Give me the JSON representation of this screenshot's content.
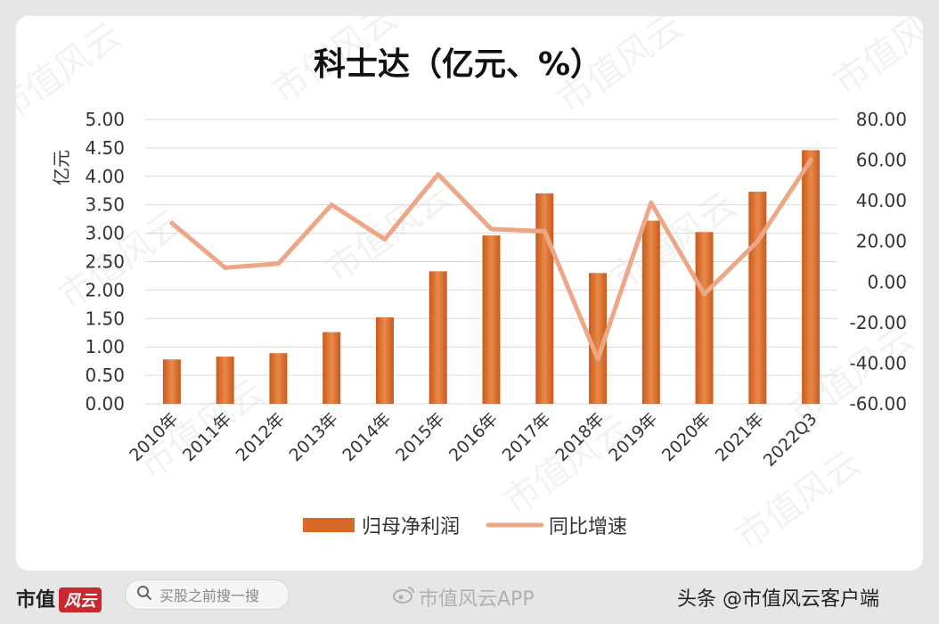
{
  "chart_data": {
    "type": "bar",
    "title": "科士达（亿元、%）",
    "ylabel": "亿元",
    "categories": [
      "2010年",
      "2011年",
      "2012年",
      "2013年",
      "2014年",
      "2015年",
      "2016年",
      "2017年",
      "2018年",
      "2019年",
      "2020年",
      "2021年",
      "2022Q3"
    ],
    "ylim": [
      0,
      5
    ],
    "y2lim": [
      -60,
      80
    ],
    "yticks": [
      "0.00",
      "0.50",
      "1.00",
      "1.50",
      "2.00",
      "2.50",
      "3.00",
      "3.50",
      "4.00",
      "4.50",
      "5.00"
    ],
    "y2ticks": [
      "-60.00",
      "-40.00",
      "-20.00",
      "0.00",
      "20.00",
      "40.00",
      "60.00",
      "80.00"
    ],
    "series": [
      {
        "name": "归母净利润",
        "type": "bar",
        "axis": "left",
        "values": [
          0.78,
          0.83,
          0.89,
          1.26,
          1.52,
          2.33,
          2.96,
          3.7,
          2.3,
          3.22,
          3.02,
          3.73,
          4.46
        ]
      },
      {
        "name": "同比增速",
        "type": "line",
        "axis": "right",
        "values": [
          29,
          7,
          9,
          38,
          21,
          53,
          26,
          25,
          -38,
          39,
          -6,
          20,
          60
        ]
      }
    ],
    "grid": true,
    "legend": "bottom",
    "colors": {
      "bar": "#d86a28",
      "bar_light": "#e99054",
      "line": "#eda787",
      "grid": "#d9d9d9",
      "text": "#333333"
    }
  },
  "watermark": "市值风云",
  "footer": {
    "brand": "市值",
    "brand_mark": "风云",
    "search_icon": "search-icon",
    "search_placeholder": "买股之前搜一搜",
    "weibo_icon": "weibo-icon",
    "weibo_text": "市值风云APP",
    "source_text": "头条 @市值风云客户端"
  }
}
